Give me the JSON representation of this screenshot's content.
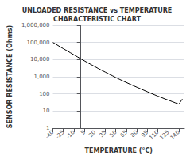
{
  "chart_data": {
    "type": "line",
    "title": "UNLOADED RESISTANCE vs TEMPERATURE\nCHARACTERISTIC CHART",
    "x_label": "TEMPERATURE (°C)",
    "y_label": "SENSOR RESISTANCE (Ohms)",
    "x": [
      -40,
      -35,
      -30,
      -25,
      -20,
      -15,
      -10,
      -5,
      0,
      5,
      10,
      15,
      20,
      25,
      30,
      35,
      40,
      45,
      50,
      55,
      60,
      65,
      70,
      75,
      80,
      85,
      90,
      95,
      100,
      105,
      110,
      115,
      120,
      125,
      130,
      135,
      140,
      145
    ],
    "values": [
      100000,
      76000,
      57000,
      43000,
      33000,
      25000,
      19000,
      14500,
      11000,
      8500,
      6500,
      5000,
      3900,
      3000,
      2350,
      1850,
      1450,
      1150,
      900,
      715,
      570,
      460,
      370,
      300,
      245,
      200,
      163,
      133,
      109,
      90,
      74,
      62,
      51,
      43,
      36,
      30,
      25,
      50
    ],
    "color": "#000000",
    "xlim": [
      -40,
      148
    ],
    "xticks": [
      -40,
      -25,
      -10,
      5,
      20,
      35,
      50,
      65,
      80,
      95,
      110,
      125,
      140
    ],
    "ylim": [
      1,
      1000000
    ],
    "yticks": [
      1,
      10,
      100,
      {
        "value": 1000,
        "label": "1,000"
      },
      {
        "value": 10000,
        "label": "10,000"
      },
      {
        "value": 100000,
        "label": "100,000"
      },
      {
        "value": 1000000,
        "label": "1,000,000"
      }
    ],
    "log": "y",
    "grid": "y"
  }
}
